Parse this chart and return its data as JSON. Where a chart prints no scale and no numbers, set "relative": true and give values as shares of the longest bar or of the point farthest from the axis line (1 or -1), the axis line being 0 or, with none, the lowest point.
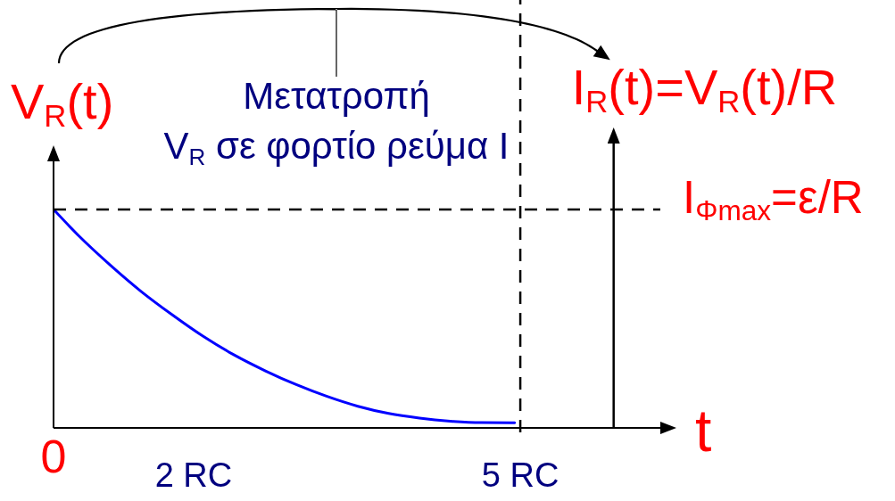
{
  "chart_data": {
    "type": "line",
    "relative": true,
    "ylabel": "V$_{R}$(t)",
    "xlabel": "t",
    "x": [
      0,
      0.28,
      0.61,
      0.94,
      1.27,
      1.6,
      1.93,
      2.27,
      2.6,
      2.93,
      3.26,
      3.59,
      3.92,
      4.25,
      4.58,
      4.94
    ],
    "xlim": [
      0,
      6.5
    ],
    "xticks": [
      0,
      {
        "value": 1.5,
        "label": "2 RC"
      },
      {
        "value": 5,
        "label": "5 RC"
      }
    ],
    "series": [
      {
        "color": "#0000ff",
        "values": [
          1,
          0.875,
          0.744,
          0.624,
          0.518,
          0.42,
          0.335,
          0.261,
          0.198,
          0.144,
          0.099,
          0.066,
          0.045,
          0.031,
          0.024,
          0.023
        ]
      },
      {
        "type": "line",
        "name": "I$_{Φmax}$=ε/R",
        "x": [
          0,
          6.5
        ],
        "values": [
          1,
          1
        ],
        "color": "#000000",
        "line_style": "dashed"
      }
    ],
    "marker": "none",
    "ref_lines": [
      {
        "axis": "x",
        "value": 5,
        "color": "#000000",
        "line_style": "dashed"
      },
      {
        "axis": "x",
        "value": 6,
        "label": "I$_{R}$(t)=V$_{R}$(t)/R",
        "color": "#000000",
        "line_style": "solid"
      }
    ],
    "annotations": [
      "Μετατροπή",
      "V$_{R}$ σε φορτίο ρεύμα I"
    ]
  }
}
